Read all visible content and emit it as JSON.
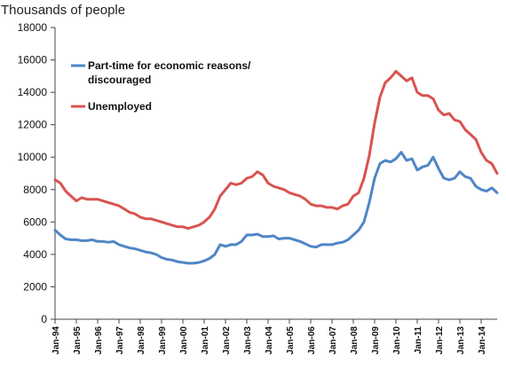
{
  "chart_data": {
    "type": "line",
    "title": "",
    "ylabel": "Thousands of people",
    "xlabel": "",
    "ylim": [
      0,
      18000
    ],
    "y_ticks": [
      0,
      2000,
      4000,
      6000,
      8000,
      10000,
      12000,
      14000,
      16000,
      18000
    ],
    "x_tick_labels": [
      "Jan-94",
      "Jan-95",
      "Jan-96",
      "Jan-97",
      "Jan-98",
      "Jan-99",
      "Jan-00",
      "Jan-01",
      "Jan-02",
      "Jan-03",
      "Jan-04",
      "Jan-05",
      "Jan-06",
      "Jan-07",
      "Jan-08",
      "Jan-09",
      "Jan-10",
      "Jan-11",
      "Jan-12",
      "Jan-13",
      "Jan-14"
    ],
    "x_range": [
      "Jan-94",
      "Oct-14"
    ],
    "grid": false,
    "legend_position": "top-left",
    "series": [
      {
        "name": "Part-time for economic reasons/ discouraged",
        "legend_lines": [
          "Part-time for economic reasons/",
          "discouraged"
        ],
        "color": "#4f86c6",
        "points": [
          [
            "Jan-94",
            5500
          ],
          [
            "Apr-94",
            5200
          ],
          [
            "Jul-94",
            4950
          ],
          [
            "Oct-94",
            4900
          ],
          [
            "Jan-95",
            4900
          ],
          [
            "Apr-95",
            4850
          ],
          [
            "Jul-95",
            4850
          ],
          [
            "Oct-95",
            4900
          ],
          [
            "Jan-96",
            4800
          ],
          [
            "Apr-96",
            4800
          ],
          [
            "Jul-96",
            4750
          ],
          [
            "Oct-96",
            4800
          ],
          [
            "Jan-97",
            4600
          ],
          [
            "Apr-97",
            4500
          ],
          [
            "Jul-97",
            4400
          ],
          [
            "Oct-97",
            4350
          ],
          [
            "Jan-98",
            4250
          ],
          [
            "Apr-98",
            4150
          ],
          [
            "Jul-98",
            4100
          ],
          [
            "Oct-98",
            4000
          ],
          [
            "Jan-99",
            3800
          ],
          [
            "Apr-99",
            3700
          ],
          [
            "Jul-99",
            3650
          ],
          [
            "Oct-99",
            3550
          ],
          [
            "Jan-00",
            3500
          ],
          [
            "Apr-00",
            3450
          ],
          [
            "Jul-00",
            3450
          ],
          [
            "Oct-00",
            3500
          ],
          [
            "Jan-01",
            3600
          ],
          [
            "Apr-01",
            3750
          ],
          [
            "Jul-01",
            4000
          ],
          [
            "Oct-01",
            4600
          ],
          [
            "Jan-02",
            4500
          ],
          [
            "Apr-02",
            4600
          ],
          [
            "Jul-02",
            4600
          ],
          [
            "Oct-02",
            4800
          ],
          [
            "Jan-03",
            5200
          ],
          [
            "Apr-03",
            5200
          ],
          [
            "Jul-03",
            5250
          ],
          [
            "Oct-03",
            5100
          ],
          [
            "Jan-04",
            5100
          ],
          [
            "Apr-04",
            5150
          ],
          [
            "Jul-04",
            4950
          ],
          [
            "Oct-04",
            5000
          ],
          [
            "Jan-05",
            5000
          ],
          [
            "Apr-05",
            4900
          ],
          [
            "Jul-05",
            4800
          ],
          [
            "Oct-05",
            4650
          ],
          [
            "Jan-06",
            4500
          ],
          [
            "Apr-06",
            4450
          ],
          [
            "Jul-06",
            4600
          ],
          [
            "Oct-06",
            4600
          ],
          [
            "Jan-07",
            4600
          ],
          [
            "Apr-07",
            4700
          ],
          [
            "Jul-07",
            4750
          ],
          [
            "Oct-07",
            4900
          ],
          [
            "Jan-08",
            5200
          ],
          [
            "Apr-08",
            5500
          ],
          [
            "Jul-08",
            6000
          ],
          [
            "Oct-08",
            7200
          ],
          [
            "Jan-09",
            8700
          ],
          [
            "Apr-09",
            9600
          ],
          [
            "Jul-09",
            9800
          ],
          [
            "Oct-09",
            9700
          ],
          [
            "Jan-10",
            9900
          ],
          [
            "Apr-10",
            10300
          ],
          [
            "Jul-10",
            9800
          ],
          [
            "Oct-10",
            9900
          ],
          [
            "Jan-11",
            9200
          ],
          [
            "Apr-11",
            9400
          ],
          [
            "Jul-11",
            9500
          ],
          [
            "Oct-11",
            10000
          ],
          [
            "Jan-12",
            9300
          ],
          [
            "Apr-12",
            8700
          ],
          [
            "Jul-12",
            8600
          ],
          [
            "Oct-12",
            8700
          ],
          [
            "Jan-13",
            9100
          ],
          [
            "Apr-13",
            8800
          ],
          [
            "Jul-13",
            8700
          ],
          [
            "Oct-13",
            8200
          ],
          [
            "Jan-14",
            8000
          ],
          [
            "Apr-14",
            7900
          ],
          [
            "Jul-14",
            8100
          ],
          [
            "Oct-14",
            7800
          ]
        ]
      },
      {
        "name": "Unemployed",
        "legend_lines": [
          "Unemployed"
        ],
        "color": "#d9534f",
        "points": [
          [
            "Jan-94",
            8600
          ],
          [
            "Apr-94",
            8400
          ],
          [
            "Jul-94",
            7900
          ],
          [
            "Oct-94",
            7600
          ],
          [
            "Jan-95",
            7300
          ],
          [
            "Apr-95",
            7500
          ],
          [
            "Jul-95",
            7400
          ],
          [
            "Oct-95",
            7400
          ],
          [
            "Jan-96",
            7400
          ],
          [
            "Apr-96",
            7300
          ],
          [
            "Jul-96",
            7200
          ],
          [
            "Oct-96",
            7100
          ],
          [
            "Jan-97",
            7000
          ],
          [
            "Apr-97",
            6800
          ],
          [
            "Jul-97",
            6600
          ],
          [
            "Oct-97",
            6500
          ],
          [
            "Jan-98",
            6300
          ],
          [
            "Apr-98",
            6200
          ],
          [
            "Jul-98",
            6200
          ],
          [
            "Oct-98",
            6100
          ],
          [
            "Jan-99",
            6000
          ],
          [
            "Apr-99",
            5900
          ],
          [
            "Jul-99",
            5800
          ],
          [
            "Oct-99",
            5700
          ],
          [
            "Jan-00",
            5700
          ],
          [
            "Apr-00",
            5600
          ],
          [
            "Jul-00",
            5700
          ],
          [
            "Oct-00",
            5800
          ],
          [
            "Jan-01",
            6000
          ],
          [
            "Apr-01",
            6300
          ],
          [
            "Jul-01",
            6800
          ],
          [
            "Oct-01",
            7600
          ],
          [
            "Jan-02",
            8000
          ],
          [
            "Apr-02",
            8400
          ],
          [
            "Jul-02",
            8300
          ],
          [
            "Oct-02",
            8400
          ],
          [
            "Jan-03",
            8700
          ],
          [
            "Apr-03",
            8800
          ],
          [
            "Jul-03",
            9100
          ],
          [
            "Oct-03",
            8900
          ],
          [
            "Jan-04",
            8400
          ],
          [
            "Apr-04",
            8200
          ],
          [
            "Jul-04",
            8100
          ],
          [
            "Oct-04",
            8000
          ],
          [
            "Jan-05",
            7800
          ],
          [
            "Apr-05",
            7700
          ],
          [
            "Jul-05",
            7600
          ],
          [
            "Oct-05",
            7400
          ],
          [
            "Jan-06",
            7100
          ],
          [
            "Apr-06",
            7000
          ],
          [
            "Jul-06",
            7000
          ],
          [
            "Oct-06",
            6900
          ],
          [
            "Jan-07",
            6900
          ],
          [
            "Apr-07",
            6800
          ],
          [
            "Jul-07",
            7000
          ],
          [
            "Oct-07",
            7100
          ],
          [
            "Jan-08",
            7600
          ],
          [
            "Apr-08",
            7800
          ],
          [
            "Jul-08",
            8700
          ],
          [
            "Oct-08",
            10100
          ],
          [
            "Jan-09",
            12100
          ],
          [
            "Apr-09",
            13700
          ],
          [
            "Jul-09",
            14600
          ],
          [
            "Oct-09",
            14900
          ],
          [
            "Jan-10",
            15300
          ],
          [
            "Apr-10",
            15000
          ],
          [
            "Jul-10",
            14700
          ],
          [
            "Oct-10",
            14900
          ],
          [
            "Jan-11",
            14000
          ],
          [
            "Apr-11",
            13800
          ],
          [
            "Jul-11",
            13800
          ],
          [
            "Oct-11",
            13600
          ],
          [
            "Jan-12",
            12900
          ],
          [
            "Apr-12",
            12600
          ],
          [
            "Jul-12",
            12700
          ],
          [
            "Oct-12",
            12300
          ],
          [
            "Jan-13",
            12200
          ],
          [
            "Apr-13",
            11700
          ],
          [
            "Jul-13",
            11400
          ],
          [
            "Oct-13",
            11100
          ],
          [
            "Jan-14",
            10300
          ],
          [
            "Apr-14",
            9800
          ],
          [
            "Jul-14",
            9600
          ],
          [
            "Oct-14",
            9000
          ]
        ]
      }
    ]
  }
}
